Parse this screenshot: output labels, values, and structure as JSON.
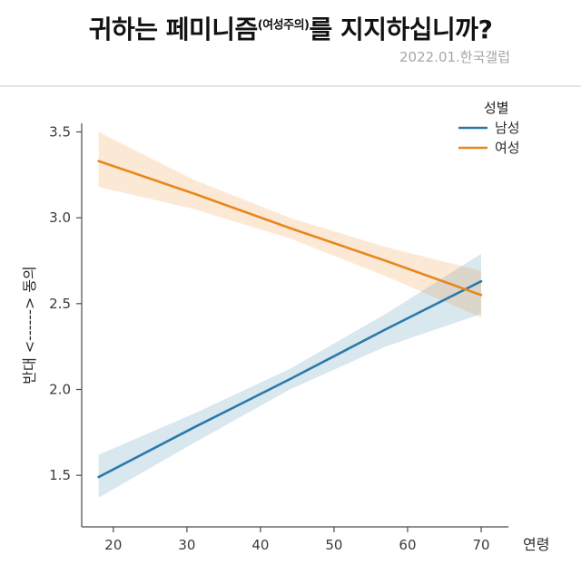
{
  "header": {
    "title_main": "귀하는 페미니즘",
    "title_sup": "(여성주의)",
    "title_tail": "를 지지하십니까?",
    "source": "2022.01.한국갤럽"
  },
  "chart_data": {
    "type": "line",
    "title": "귀하는 페미니즘(여성주의)를 지지하십니까?",
    "xlabel": "연령",
    "ylabel": "반대 <------> 동의",
    "legend_title": "성별",
    "legend_position": "top-right",
    "grid": false,
    "x_ticks": [
      20,
      30,
      40,
      50,
      60,
      70
    ],
    "y_ticks": [
      1.5,
      2.0,
      2.5,
      3.0,
      3.5
    ],
    "xlim": [
      15.7,
      73.7
    ],
    "ylim": [
      1.2,
      3.55
    ],
    "colors": {
      "male": "#2a7aa9",
      "female": "#e8871c"
    },
    "series": [
      {
        "name": "남성",
        "color": "#2a7aa9",
        "x": [
          18,
          31,
          44,
          57,
          70
        ],
        "y": [
          1.49,
          1.78,
          2.06,
          2.35,
          2.63
        ],
        "ci_lower": [
          1.37,
          1.69,
          2.0,
          2.25,
          2.44
        ],
        "ci_upper": [
          1.62,
          1.86,
          2.12,
          2.44,
          2.79
        ]
      },
      {
        "name": "여성",
        "color": "#e8871c",
        "x": [
          18,
          31,
          44,
          57,
          70
        ],
        "y": [
          3.33,
          3.14,
          2.94,
          2.75,
          2.55
        ],
        "ci_lower": [
          3.18,
          3.05,
          2.88,
          2.66,
          2.42
        ],
        "ci_upper": [
          3.5,
          3.22,
          3.0,
          2.83,
          2.69
        ]
      }
    ]
  }
}
